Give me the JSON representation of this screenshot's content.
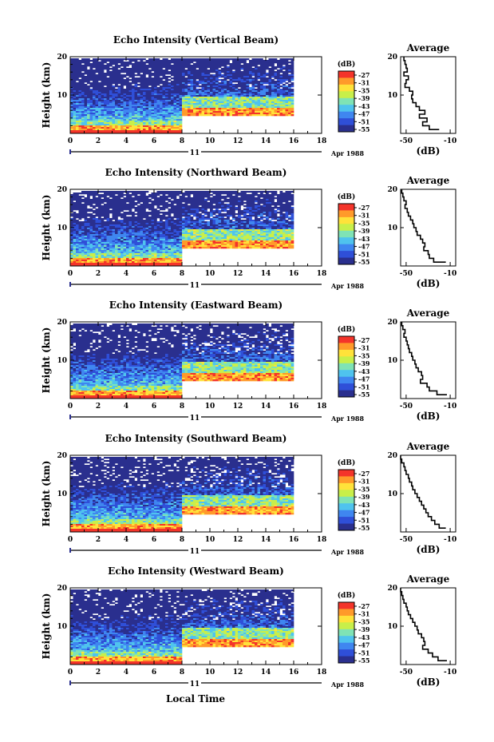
{
  "figure": {
    "xlabel": "Local Time",
    "date_label": "Apr 1988",
    "day_label": "11",
    "ylabel": "Height (km)",
    "avg_title": "Average",
    "avg_xlabel": "(dB)",
    "colorbar_title": "(dB)"
  },
  "colors": {
    "scale": [
      "#2a2f8e",
      "#2f4fd8",
      "#3f86f0",
      "#4fc3ee",
      "#7fe3b5",
      "#c8ef4a",
      "#ffe23a",
      "#ff9a2a",
      "#f4342a"
    ]
  },
  "chart_data": [
    {
      "type": "heatmap",
      "title": "Echo Intensity (Vertical Beam)",
      "xlabel": "Local Time",
      "ylabel": "Height (km)",
      "x_ticks": [
        0,
        2,
        4,
        6,
        8,
        10,
        12,
        14,
        16,
        18
      ],
      "y_ticks": [
        10,
        20
      ],
      "xlim": [
        0,
        18
      ],
      "ylim": [
        0,
        20
      ],
      "data_end_hour": 16,
      "upper_layer_start_km": 5,
      "upper_layer_start_hour": 8,
      "colorbar": {
        "ticks": [
          -27,
          -31,
          -35,
          -39,
          -43,
          -47,
          -51,
          -55
        ],
        "unit": "dB"
      },
      "average": {
        "title": "Average",
        "xlabel": "(dB)",
        "x_ticks": [
          -50,
          -10
        ],
        "xlim": [
          -55,
          -5
        ],
        "ylim": [
          0,
          20
        ],
        "height_km": [
          20,
          19,
          18,
          17,
          16,
          15,
          14,
          13,
          12,
          11,
          10,
          9,
          8,
          7,
          6,
          5,
          4,
          3,
          2,
          1
        ],
        "db": [
          -52,
          -51,
          -50,
          -49,
          -52,
          -48,
          -50,
          -51,
          -47,
          -44,
          -45,
          -44,
          -41,
          -38,
          -33,
          -38,
          -31,
          -35,
          -29,
          -20
        ]
      }
    },
    {
      "type": "heatmap",
      "title": "Echo Intensity (Northward Beam)",
      "xlabel": "Local Time",
      "ylabel": "Height (km)",
      "x_ticks": [
        0,
        2,
        4,
        6,
        8,
        10,
        12,
        14,
        16,
        18
      ],
      "y_ticks": [
        10,
        20
      ],
      "xlim": [
        0,
        18
      ],
      "ylim": [
        0,
        20
      ],
      "data_end_hour": 16,
      "upper_layer_start_km": 5,
      "upper_layer_start_hour": 8,
      "colorbar": {
        "ticks": [
          -27,
          -31,
          -35,
          -39,
          -43,
          -47,
          -51,
          -55
        ],
        "unit": "dB"
      },
      "average": {
        "title": "Average",
        "xlabel": "(dB)",
        "x_ticks": [
          -50,
          -10
        ],
        "xlim": [
          -55,
          -5
        ],
        "ylim": [
          0,
          20
        ],
        "height_km": [
          20,
          19,
          18,
          17,
          16,
          15,
          14,
          13,
          12,
          11,
          10,
          9,
          8,
          7,
          6,
          5,
          4,
          3,
          2,
          1
        ],
        "db": [
          -54,
          -53,
          -52,
          -50,
          -51,
          -49,
          -48,
          -46,
          -44,
          -43,
          -41,
          -40,
          -37,
          -35,
          -33,
          -34,
          -30,
          -29,
          -25,
          -14
        ]
      }
    },
    {
      "type": "heatmap",
      "title": "Echo Intensity (Eastward Beam)",
      "xlabel": "Local Time",
      "ylabel": "Height (km)",
      "x_ticks": [
        0,
        2,
        4,
        6,
        8,
        10,
        12,
        14,
        16,
        18
      ],
      "y_ticks": [
        10,
        20
      ],
      "xlim": [
        0,
        18
      ],
      "ylim": [
        0,
        20
      ],
      "data_end_hour": 16,
      "upper_layer_start_km": 5,
      "upper_layer_start_hour": 8,
      "colorbar": {
        "ticks": [
          -27,
          -31,
          -35,
          -39,
          -43,
          -47,
          -51,
          -55
        ],
        "unit": "dB"
      },
      "average": {
        "title": "Average",
        "xlabel": "(dB)",
        "x_ticks": [
          -50,
          -10
        ],
        "xlim": [
          -55,
          -5
        ],
        "ylim": [
          0,
          20
        ],
        "height_km": [
          20,
          19,
          18,
          17,
          16,
          15,
          14,
          13,
          12,
          11,
          10,
          9,
          8,
          7,
          6,
          5,
          4,
          3,
          2,
          1
        ],
        "db": [
          -54,
          -53,
          -51,
          -52,
          -50,
          -49,
          -48,
          -47,
          -45,
          -44,
          -42,
          -41,
          -39,
          -36,
          -35,
          -37,
          -31,
          -29,
          -22,
          -13
        ]
      }
    },
    {
      "type": "heatmap",
      "title": "Echo Intensity (Southward Beam)",
      "xlabel": "Local Time",
      "ylabel": "Height (km)",
      "x_ticks": [
        0,
        2,
        4,
        6,
        8,
        10,
        12,
        14,
        16,
        18
      ],
      "y_ticks": [
        10,
        20
      ],
      "xlim": [
        0,
        18
      ],
      "ylim": [
        0,
        20
      ],
      "data_end_hour": 16,
      "upper_layer_start_km": 5,
      "upper_layer_start_hour": 8,
      "colorbar": {
        "ticks": [
          -27,
          -31,
          -35,
          -39,
          -43,
          -47,
          -51,
          -55
        ],
        "unit": "dB"
      },
      "average": {
        "title": "Average",
        "xlabel": "(dB)",
        "x_ticks": [
          -50,
          -10
        ],
        "xlim": [
          -55,
          -5
        ],
        "ylim": [
          0,
          20
        ],
        "height_km": [
          20,
          19,
          18,
          17,
          16,
          15,
          14,
          13,
          12,
          11,
          10,
          9,
          8,
          7,
          6,
          5,
          4,
          3,
          2,
          1
        ],
        "db": [
          -55,
          -54,
          -52,
          -51,
          -50,
          -48,
          -47,
          -45,
          -44,
          -42,
          -40,
          -38,
          -36,
          -34,
          -32,
          -30,
          -27,
          -24,
          -20,
          -14
        ]
      }
    },
    {
      "type": "heatmap",
      "title": "Echo Intensity (Westward Beam)",
      "xlabel": "Local Time",
      "ylabel": "Height (km)",
      "x_ticks": [
        0,
        2,
        4,
        6,
        8,
        10,
        12,
        14,
        16,
        18
      ],
      "y_ticks": [
        10,
        20
      ],
      "xlim": [
        0,
        18
      ],
      "ylim": [
        0,
        20
      ],
      "data_end_hour": 16,
      "upper_layer_start_km": 5,
      "upper_layer_start_hour": 8,
      "colorbar": {
        "ticks": [
          -27,
          -31,
          -35,
          -39,
          -43,
          -47,
          -51,
          -55
        ],
        "unit": "dB"
      },
      "average": {
        "title": "Average",
        "xlabel": "(dB)",
        "x_ticks": [
          -50,
          -10
        ],
        "xlim": [
          -55,
          -5
        ],
        "ylim": [
          0,
          20
        ],
        "height_km": [
          20,
          19,
          18,
          17,
          16,
          15,
          14,
          13,
          12,
          11,
          10,
          9,
          8,
          7,
          6,
          5,
          4,
          3,
          2,
          1
        ],
        "db": [
          -55,
          -54,
          -53,
          -52,
          -50,
          -49,
          -48,
          -46,
          -44,
          -42,
          -40,
          -39,
          -36,
          -34,
          -33,
          -35,
          -30,
          -26,
          -21,
          -13
        ]
      }
    }
  ]
}
